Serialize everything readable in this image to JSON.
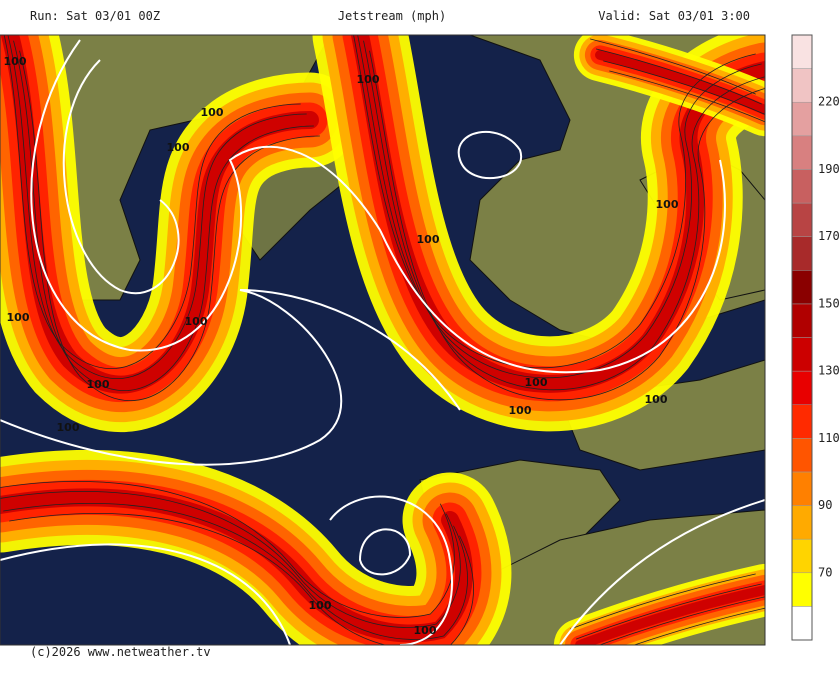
{
  "header": {
    "run": "Run: Sat 03/01 00Z",
    "title": "Jetstream (mph)",
    "valid": "Valid: Sat 03/01 3:00"
  },
  "legend": {
    "bands": [
      "#ffffff",
      "#ffff00",
      "#ffd400",
      "#ffaa00",
      "#ff8000",
      "#ff5500",
      "#ff2a00",
      "#e80000",
      "#cc0000",
      "#b00000",
      "#8a0000",
      "#a82a2a",
      "#b84444",
      "#c86060",
      "#d88080",
      "#e4a0a0",
      "#f0c4c4",
      "#f9e2e2"
    ],
    "labels": [
      "70",
      "90",
      "110",
      "130",
      "150",
      "170",
      "190",
      "220"
    ]
  },
  "map": {
    "contour_labels": [
      "100",
      "100",
      "100",
      "100",
      "100",
      "100",
      "100",
      "100",
      "100",
      "100",
      "100",
      "100",
      "100",
      "100",
      "100"
    ]
  },
  "footer": "(c)2026 www.netweather.tv"
}
